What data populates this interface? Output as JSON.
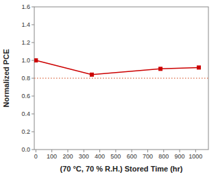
{
  "chart_data": {
    "type": "line",
    "xlabel": "(70 °C, 70 % R.H.) Stored Time (hr)",
    "ylabel": "Normalized PCE",
    "x": [
      0,
      350,
      780,
      1020
    ],
    "series": [
      {
        "color": "#cc0000",
        "marker": "square",
        "values": [
          1.0,
          0.84,
          0.905,
          0.92
        ]
      }
    ],
    "reference_line": {
      "value": 0.8,
      "color": "#e08060",
      "line_style": "dotted"
    },
    "xlim": [
      -10,
      1080
    ],
    "ylim": [
      0.0,
      1.6
    ],
    "xticks": [
      0,
      100,
      200,
      300,
      400,
      500,
      600,
      700,
      800,
      900,
      1000
    ],
    "yticks": [
      {
        "value": 0.0,
        "label": "0.0"
      },
      0.2,
      0.4,
      0.6,
      0.8,
      {
        "value": 1.0,
        "label": "1.0"
      },
      1.2,
      1.4,
      1.6
    ],
    "grid": false
  }
}
